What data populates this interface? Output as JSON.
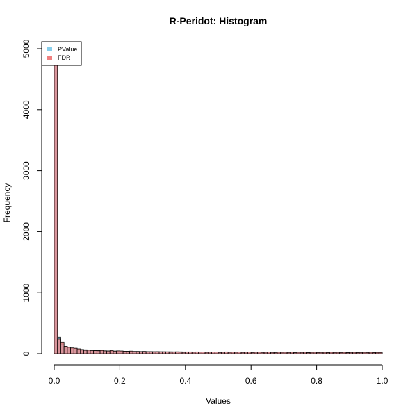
{
  "chart_data": {
    "type": "bar",
    "title": "R-Peridot: Histogram",
    "xlabel": "Values",
    "ylabel": "Frequency",
    "xlim": [
      0,
      1
    ],
    "ylim": [
      0,
      5000
    ],
    "x_ticks": [
      "0.0",
      "0.2",
      "0.4",
      "0.6",
      "0.8",
      "1.0"
    ],
    "y_ticks": [
      "0",
      "1000",
      "2000",
      "3000",
      "4000",
      "5000"
    ],
    "bin_width": 0.01,
    "grid": false,
    "legend_position": "top-left",
    "series": [
      {
        "name": "PValue",
        "color": "#87ceeb",
        "values": [
          5000,
          270,
          160,
          120,
          100,
          90,
          85,
          75,
          70,
          65,
          62,
          58,
          55,
          52,
          50,
          48,
          46,
          45,
          44,
          43,
          42,
          41,
          40,
          39,
          38,
          37,
          36,
          36,
          35,
          35,
          34,
          34,
          33,
          33,
          32,
          32,
          31,
          31,
          31,
          30,
          30,
          30,
          29,
          29,
          29,
          28,
          28,
          28,
          28,
          27,
          27,
          27,
          27,
          26,
          26,
          26,
          26,
          25,
          25,
          25,
          25,
          25,
          24,
          24,
          24,
          24,
          24,
          23,
          23,
          23,
          23,
          23,
          23,
          22,
          22,
          22,
          22,
          22,
          22,
          22,
          21,
          21,
          21,
          21,
          21,
          21,
          21,
          20,
          20,
          20,
          20,
          20,
          20,
          20,
          20,
          20,
          19,
          19,
          19,
          19
        ]
      },
      {
        "name": "FDR",
        "color": "#f08080",
        "values": [
          4800,
          240,
          190,
          120,
          105,
          95,
          90,
          80,
          60,
          55,
          58,
          52,
          50,
          48,
          55,
          46,
          44,
          52,
          42,
          47,
          45,
          40,
          38,
          43,
          35,
          37,
          32,
          38,
          28,
          30,
          26,
          32,
          30,
          27,
          29,
          24,
          26,
          31,
          25,
          22,
          27,
          29,
          24,
          30,
          26,
          28,
          22,
          25,
          29,
          27,
          20,
          24,
          30,
          22,
          26,
          23,
          28,
          21,
          25,
          27,
          19,
          24,
          26,
          20,
          23,
          28,
          21,
          19,
          25,
          22,
          24,
          20,
          26,
          18,
          23,
          21,
          25,
          17,
          22,
          24,
          19,
          21,
          23,
          18,
          25,
          20,
          22,
          19,
          24,
          17,
          21,
          23,
          18,
          20,
          22,
          19,
          24,
          18,
          21,
          20
        ]
      }
    ]
  }
}
